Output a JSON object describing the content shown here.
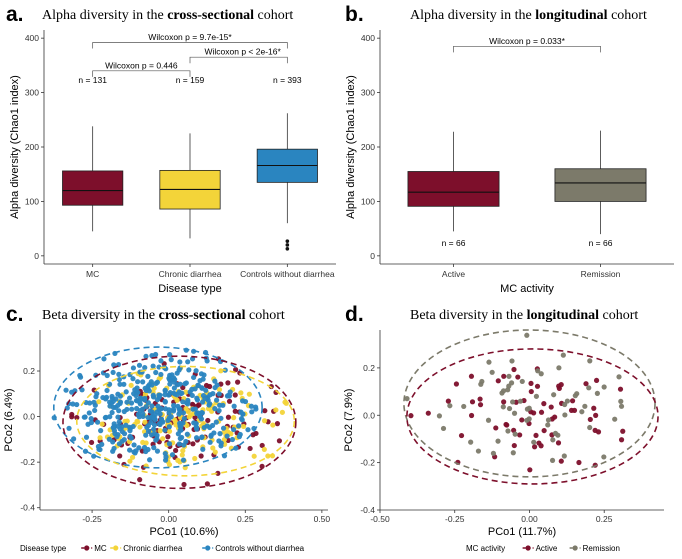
{
  "colors": {
    "MC": "#7d0f2b",
    "Chronic diarrhea": "#f3d439",
    "Controls without diarrhea": "#2a85c0",
    "Active": "#7d0f2b",
    "Remission": "#7c7a6a"
  },
  "panels": {
    "a": {
      "label": "a.",
      "title_pre": "Alpha diversity in the ",
      "title_bold": "cross-sectional",
      "title_post": " cohort"
    },
    "b": {
      "label": "b.",
      "title_pre": "Alpha diversity in the ",
      "title_bold": "longitudinal",
      "title_post": " cohort"
    },
    "c": {
      "label": "c.",
      "title_pre": "Beta diversity in the ",
      "title_bold": "cross-sectional",
      "title_post": " cohort"
    },
    "d": {
      "label": "d.",
      "title_pre": "Beta diversity in the ",
      "title_bold": "longitudinal",
      "title_post": " cohort"
    }
  },
  "chart_data": [
    {
      "id": "a",
      "type": "box",
      "xlabel": "Disease type",
      "ylabel": "Alpha diversity (Chao1 index)",
      "ylim": [
        -15,
        415
      ],
      "yticks": [
        "0",
        "100",
        "200",
        "300",
        "400"
      ],
      "categories": [
        "MC",
        "Chronic diarrhea",
        "Controls without diarrhea"
      ],
      "boxes": [
        {
          "name": "MC",
          "min": 45,
          "q1": 93,
          "median": 120,
          "q3": 156,
          "max": 238,
          "outliers": [],
          "n_label": "n = 131"
        },
        {
          "name": "Chronic diarrhea",
          "min": 32,
          "q1": 86,
          "median": 122,
          "q3": 157,
          "max": 225,
          "outliers": [],
          "n_label": "n = 159"
        },
        {
          "name": "Controls without diarrhea",
          "min": 60,
          "q1": 135,
          "median": 166,
          "q3": 196,
          "max": 262,
          "outliers": [
            27,
            20,
            13
          ],
          "n_label": "n = 393"
        }
      ],
      "comparisons": [
        {
          "from": 0,
          "to": 2,
          "label": "Wilcoxon p = 9.7e-15*"
        },
        {
          "from": 1,
          "to": 2,
          "label": "Wilcoxon p < 2e-16*"
        },
        {
          "from": 0,
          "to": 1,
          "label": "Wilcoxon p = 0.446"
        }
      ]
    },
    {
      "id": "b",
      "type": "box",
      "xlabel": "MC activity",
      "ylabel": "Alpha diversity (Chao1 index)",
      "ylim": [
        -15,
        415
      ],
      "yticks": [
        "0",
        "100",
        "200",
        "300",
        "400"
      ],
      "categories": [
        "Active",
        "Remission"
      ],
      "boxes": [
        {
          "name": "Active",
          "min": 45,
          "q1": 91,
          "median": 117,
          "q3": 155,
          "max": 228,
          "outliers": [],
          "n_label": "n = 66"
        },
        {
          "name": "Remission",
          "min": 40,
          "q1": 100,
          "median": 134,
          "q3": 160,
          "max": 230,
          "outliers": [],
          "n_label": "n = 66"
        }
      ],
      "comparisons": [
        {
          "from": 0,
          "to": 1,
          "label": "Wilcoxon p = 0.033*"
        }
      ]
    },
    {
      "id": "c",
      "type": "scatter",
      "xlabel": "PCo1 (10.6%)",
      "ylabel": "PCo2 (6.4%)",
      "xlim": [
        -0.42,
        0.52
      ],
      "ylim": [
        -0.41,
        0.38
      ],
      "xticks": [
        -0.25,
        0.0,
        0.25,
        0.5
      ],
      "xtick_labels": [
        "-0.25",
        "0.00",
        "0.25",
        "0.50"
      ],
      "yticks": [
        -0.4,
        -0.2,
        0.0,
        0.2
      ],
      "ytick_labels": [
        "-0.4",
        "-0.2",
        "0.0",
        "0.2"
      ],
      "legend_title": "Disease type",
      "legend": [
        "MC",
        "Chronic diarrhea",
        "Controls without diarrhea"
      ],
      "n_points": [
        131,
        159,
        393
      ],
      "ellipses": [
        {
          "group": "Controls without diarrhea",
          "cx": -0.035,
          "cy": 0.04,
          "rx": 0.34,
          "ry": 0.265
        },
        {
          "group": "Chronic diarrhea",
          "cx": 0.055,
          "cy": -0.02,
          "rx": 0.355,
          "ry": 0.24
        },
        {
          "group": "MC",
          "cx": 0.035,
          "cy": -0.025,
          "rx": 0.38,
          "ry": 0.29
        }
      ]
    },
    {
      "id": "d",
      "type": "scatter",
      "xlabel": "PCo1 (11.7%)",
      "ylabel": "PCo2 (7.9%)",
      "xlim": [
        -0.5,
        0.45
      ],
      "ylim": [
        -0.4,
        0.36
      ],
      "xticks": [
        -0.5,
        -0.25,
        0.0,
        0.25
      ],
      "xtick_labels": [
        "-0.50",
        "-0.25",
        "0.00",
        "0.25"
      ],
      "yticks": [
        -0.4,
        -0.2,
        0.0,
        0.2
      ],
      "ytick_labels": [
        "-0.4",
        "-0.2",
        "0.0",
        "0.2"
      ],
      "legend_title": "MC activity",
      "legend": [
        "Active",
        "Remission"
      ],
      "n_points": [
        66,
        66
      ],
      "ellipses": [
        {
          "group": "Remission",
          "cx": 0.0,
          "cy": 0.05,
          "rx": 0.42,
          "ry": 0.31
        },
        {
          "group": "Active",
          "cx": 0.01,
          "cy": -0.005,
          "rx": 0.42,
          "ry": 0.285
        }
      ]
    }
  ]
}
